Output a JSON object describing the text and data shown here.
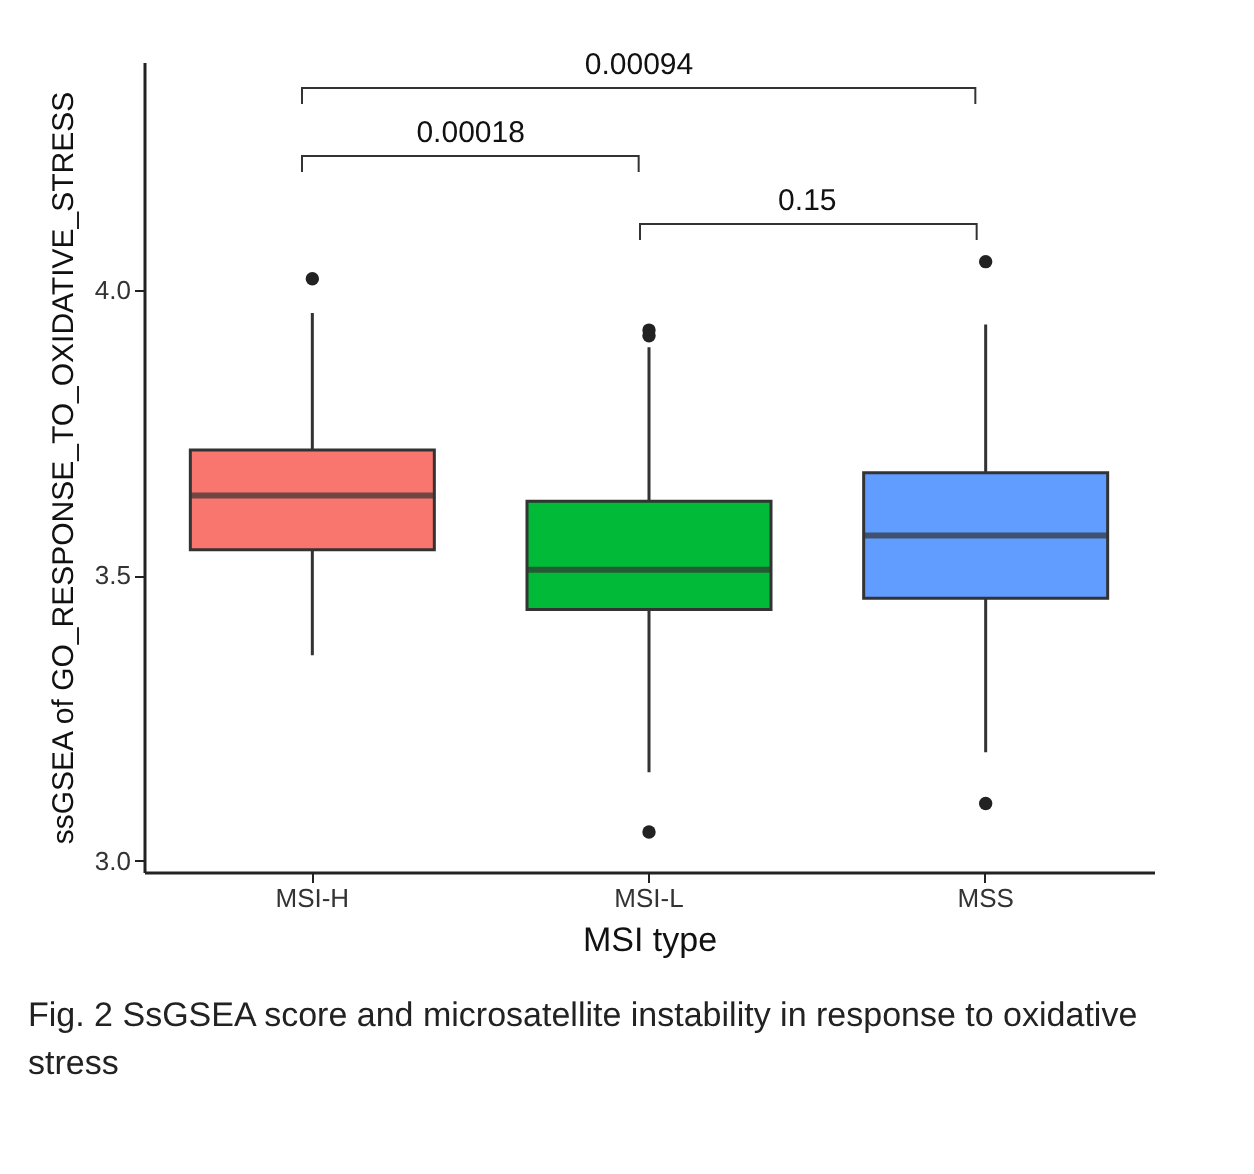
{
  "chart_data": {
    "type": "box",
    "xlabel": "MSI type",
    "ylabel": "ssGSEA of GO_RESPONSE_TO_OXIDATIVE_STRESS",
    "categories": [
      "MSI-H",
      "MSI-L",
      "MSS"
    ],
    "colors": [
      "#f8766d",
      "#00ba38",
      "#619cff"
    ],
    "boxes": [
      {
        "low": 3.36,
        "q1": 3.545,
        "median": 3.64,
        "q3": 3.72,
        "high": 3.96,
        "outliers": [
          4.02
        ]
      },
      {
        "low": 3.155,
        "q1": 3.44,
        "median": 3.51,
        "q3": 3.63,
        "high": 3.9,
        "outliers": [
          3.93,
          3.92,
          3.05
        ]
      },
      {
        "low": 3.19,
        "q1": 3.46,
        "median": 3.57,
        "q3": 3.68,
        "high": 3.94,
        "outliers": [
          4.05,
          3.1
        ]
      }
    ],
    "ylim": [
      2.98,
      4.4
    ],
    "yticks": [
      {
        "value": 3,
        "label": "3.0"
      },
      {
        "value": 3.5,
        "label": "3.5"
      },
      {
        "value": 4,
        "label": "4.0"
      }
    ],
    "annotations": [
      "0.00094",
      "0.00018",
      "0.15",
      "Fig. 2  SsGSEA score and microsatellite instability in response to oxidative stress"
    ]
  }
}
